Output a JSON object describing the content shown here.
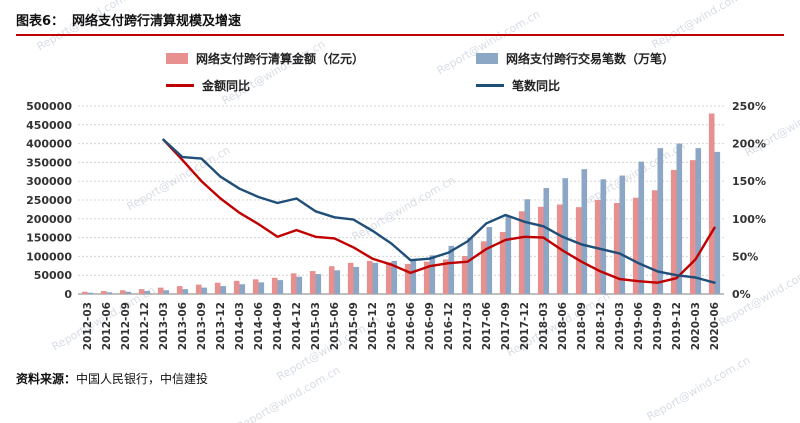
{
  "header": {
    "label": "图表6：",
    "title": "网络支付跨行清算规模及增速"
  },
  "legend": [
    {
      "type": "bar",
      "color": "#e8908f",
      "label": "网络支付跨行清算金额（亿元）"
    },
    {
      "type": "bar",
      "color": "#8ca6c5",
      "label": "网络支付跨行交易笔数（万笔）"
    },
    {
      "type": "line",
      "color": "#c00000",
      "label": "金额同比"
    },
    {
      "type": "line",
      "color": "#1f4e79",
      "label": "笔数同比"
    }
  ],
  "source": {
    "prefix": "资料来源：",
    "text": "中国人民银行，中信建投"
  },
  "watermark": {
    "text": "Report@wind.com.cn"
  },
  "chart_data": {
    "type": "bar",
    "subtype": "bar+line combo, dual axis",
    "categories": [
      "2012-03",
      "2012-06",
      "2012-09",
      "2012-12",
      "2013-03",
      "2013-06",
      "2013-09",
      "2013-12",
      "2014-03",
      "2014-06",
      "2014-09",
      "2014-12",
      "2015-03",
      "2015-06",
      "2015-09",
      "2015-12",
      "2016-03",
      "2016-06",
      "2016-09",
      "2016-12",
      "2017-03",
      "2017-06",
      "2017-09",
      "2017-12",
      "2018-03",
      "2018-06",
      "2018-09",
      "2018-12",
      "2019-03",
      "2019-06",
      "2019-09",
      "2019-12",
      "2020-03",
      "2020-06"
    ],
    "series": [
      {
        "name": "网络支付跨行清算金额（亿元）",
        "kind": "bar",
        "axis": "left",
        "color": "#e8908f",
        "values": [
          6000,
          8000,
          10000,
          13000,
          17000,
          21000,
          25000,
          30000,
          35000,
          39000,
          43000,
          55000,
          61000,
          74000,
          83000,
          88000,
          84000,
          80000,
          86000,
          92000,
          101000,
          140000,
          165000,
          220000,
          232000,
          238000,
          231000,
          250000,
          242000,
          256000,
          276000,
          330000,
          356000,
          480000
        ]
      },
      {
        "name": "网络支付跨行交易笔数（万笔）",
        "kind": "bar",
        "axis": "left",
        "color": "#8ca6c5",
        "values": [
          3500,
          4500,
          6000,
          8000,
          10000,
          13000,
          17000,
          21000,
          26000,
          31000,
          37000,
          46000,
          53000,
          63000,
          72000,
          83000,
          88000,
          92000,
          103000,
          128000,
          150000,
          178000,
          208000,
          252000,
          282000,
          308000,
          332000,
          305000,
          315000,
          352000,
          388000,
          400000,
          388000,
          378000
        ]
      },
      {
        "name": "金额同比",
        "kind": "line",
        "axis": "right",
        "color": "#c00000",
        "values": [
          null,
          null,
          null,
          null,
          205,
          178,
          150,
          127,
          108,
          93,
          76,
          85,
          76,
          74,
          62,
          47,
          39,
          28,
          37,
          41,
          43,
          60,
          72,
          76,
          75,
          58,
          43,
          30,
          20,
          17,
          15,
          21,
          46,
          88
        ]
      },
      {
        "name": "笔数同比",
        "kind": "line",
        "axis": "right",
        "color": "#1f4e79",
        "values": [
          null,
          null,
          null,
          null,
          205,
          182,
          180,
          156,
          140,
          129,
          121,
          127,
          110,
          102,
          99,
          84,
          67,
          45,
          47,
          55,
          70,
          94,
          105,
          96,
          90,
          76,
          66,
          60,
          54,
          41,
          30,
          25,
          22,
          15
        ]
      }
    ],
    "left_axis": {
      "min": 0,
      "max": 500000,
      "step": 50000,
      "labels": [
        "0",
        "50000",
        "100000",
        "150000",
        "200000",
        "250000",
        "300000",
        "350000",
        "400000",
        "450000",
        "500000"
      ]
    },
    "right_axis": {
      "min": 0,
      "max": 250,
      "step": 50,
      "suffix": "%",
      "labels": [
        "0%",
        "50%",
        "100%",
        "150%",
        "200%",
        "250%"
      ]
    },
    "grid": true,
    "legend_position": "top",
    "title": "网络支付跨行清算规模及增速"
  }
}
